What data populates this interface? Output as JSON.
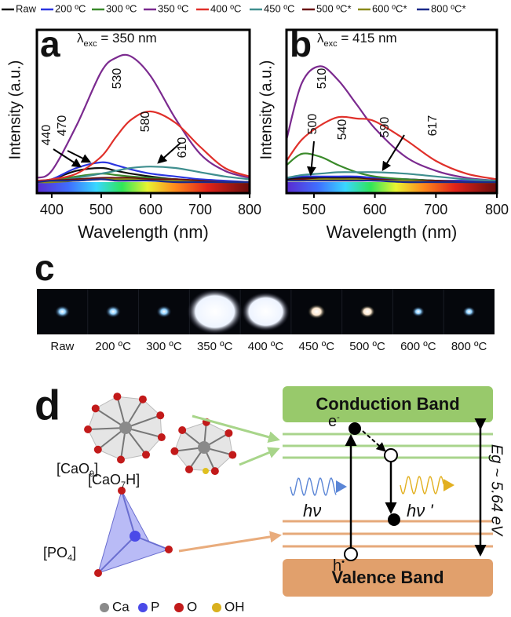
{
  "chart_data": [
    {
      "type": "line",
      "panel_label": "a",
      "excitation": [
        "λ",
        "exc",
        " = 350 nm"
      ],
      "x_label": "Wavelength (nm)",
      "y_label": "Intensity (a.u.)",
      "x": [
        370,
        400,
        450,
        500,
        530,
        560,
        600,
        650,
        700,
        750,
        800
      ],
      "xlim": [
        370,
        800
      ],
      "ylim": [
        0,
        100
      ],
      "xticks": [
        400,
        500,
        600,
        700,
        800
      ],
      "annotations": [
        530,
        470,
        440,
        580,
        610
      ],
      "series": [
        {
          "name": "Raw",
          "color": "#111111",
          "values": [
            1,
            2,
            8,
            10,
            8,
            6,
            4,
            2,
            1,
            0,
            0
          ]
        },
        {
          "name": "200 ºC",
          "color": "#2a35e0",
          "values": [
            1,
            2,
            10,
            14,
            12,
            9,
            6,
            4,
            2,
            1,
            0
          ]
        },
        {
          "name": "300 ºC",
          "color": "#3a8a2a",
          "values": [
            0,
            1,
            4,
            6,
            5,
            4,
            3,
            2,
            1,
            0,
            0
          ]
        },
        {
          "name": "350 ºC",
          "color": "#7b2a8f",
          "values": [
            3,
            8,
            40,
            78,
            88,
            89,
            75,
            45,
            20,
            8,
            3
          ]
        },
        {
          "name": "400 ºC",
          "color": "#e0302a",
          "values": [
            1,
            2,
            6,
            18,
            32,
            44,
            50,
            42,
            25,
            10,
            4
          ]
        },
        {
          "name": "450 ºC",
          "color": "#3f8f8f",
          "values": [
            0,
            0,
            3,
            6,
            8,
            10,
            11,
            10,
            7,
            4,
            2
          ]
        },
        {
          "name": "500 ºC*",
          "color": "#6a1010",
          "values": [
            0,
            1,
            2,
            3,
            3,
            3,
            2,
            2,
            1,
            0,
            0
          ]
        },
        {
          "name": "600 ºC*",
          "color": "#8a8a1a",
          "values": [
            0,
            0,
            1,
            2,
            2,
            2,
            1,
            1,
            0,
            0,
            0
          ]
        },
        {
          "name": "800 ºC*",
          "color": "#1a2a8a",
          "values": [
            0,
            1,
            1,
            2,
            1,
            1,
            1,
            0,
            0,
            0,
            0
          ]
        }
      ]
    },
    {
      "type": "line",
      "panel_label": "b",
      "excitation": [
        "λ",
        "exc",
        " = 415 nm"
      ],
      "x_label": "Wavelength (nm)",
      "y_label": "Intensity (a.u.)",
      "x": [
        455,
        480,
        510,
        540,
        570,
        600,
        650,
        700,
        750,
        800
      ],
      "xlim": [
        455,
        800
      ],
      "ylim": [
        0,
        100
      ],
      "xticks": [
        500,
        600,
        700,
        800
      ],
      "annotations": [
        510,
        500,
        540,
        590,
        617
      ],
      "series": [
        {
          "color": "#111111",
          "values": [
            2,
            3,
            3,
            3,
            3,
            2,
            2,
            1,
            0,
            0
          ]
        },
        {
          "color": "#2a35e0",
          "values": [
            3,
            4,
            4,
            4,
            4,
            3,
            2,
            1,
            1,
            0
          ]
        },
        {
          "color": "#3a8a2a",
          "values": [
            12,
            20,
            18,
            12,
            7,
            4,
            2,
            1,
            0,
            0
          ]
        },
        {
          "color": "#7b2a8f",
          "values": [
            30,
            70,
            82,
            72,
            55,
            38,
            18,
            8,
            3,
            1
          ]
        },
        {
          "color": "#e0302a",
          "values": [
            15,
            30,
            40,
            46,
            45,
            43,
            30,
            15,
            6,
            2
          ]
        },
        {
          "color": "#3f8f8f",
          "values": [
            3,
            5,
            6,
            7,
            7,
            7,
            6,
            4,
            2,
            1
          ]
        },
        {
          "color": "#6a1010",
          "values": [
            1,
            2,
            2,
            2,
            2,
            2,
            1,
            1,
            0,
            0
          ]
        },
        {
          "color": "#8a8a1a",
          "values": [
            1,
            1,
            2,
            2,
            2,
            1,
            1,
            0,
            0,
            0
          ]
        },
        {
          "color": "#1a2a8a",
          "values": [
            1,
            1,
            1,
            1,
            1,
            1,
            0,
            0,
            0,
            0
          ]
        }
      ]
    }
  ],
  "panel_c": {
    "label": "c",
    "samples": [
      "Raw",
      "200 ºC",
      "300 ºC",
      "350 ºC",
      "400 ºC",
      "450 ºC",
      "500 ºC",
      "600 ºC",
      "800 ºC"
    ]
  },
  "panel_d": {
    "label": "d",
    "clusters": [
      [
        "[CaO",
        "9",
        "]"
      ],
      [
        "[CaO",
        "7",
        "H]"
      ],
      [
        "[PO",
        "4",
        "]"
      ]
    ],
    "conduction_band": "Conduction Band",
    "valence_band": "Valence Band",
    "electron": [
      "e",
      "-"
    ],
    "hole": [
      "h",
      "•"
    ],
    "absorption": "hν",
    "emission": "hν '",
    "band_gap": "Eg ~ 5.64 eV",
    "legend": [
      "Ca",
      "P",
      "O",
      "OH"
    ]
  }
}
